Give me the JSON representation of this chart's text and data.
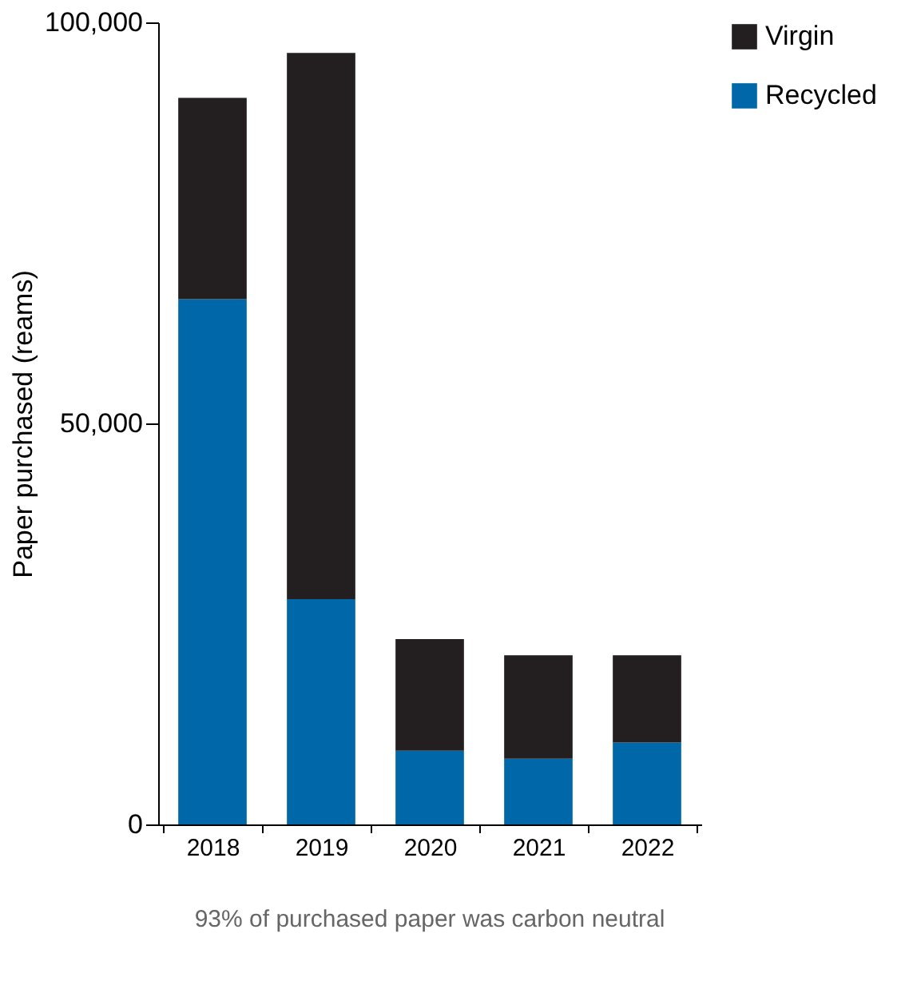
{
  "chart_data": {
    "type": "bar",
    "stacked": true,
    "ylabel": "Paper purchased (reams)",
    "categories": [
      "2018",
      "2019",
      "2020",
      "2021",
      "2022"
    ],
    "series": [
      {
        "name": "Recycled",
        "color": "#0068a8",
        "values": [
          65500,
          28100,
          9200,
          8200,
          10200
        ]
      },
      {
        "name": "Virgin",
        "color": "#231f20",
        "values": [
          25100,
          68100,
          13900,
          12900,
          10900
        ]
      }
    ],
    "ylim": [
      0,
      100000
    ],
    "yticks": [
      {
        "value": 0,
        "label": "0"
      },
      {
        "value": 50000,
        "label": "50,000"
      },
      {
        "value": 100000,
        "label": "100,000"
      }
    ],
    "grid": false,
    "legend": "right",
    "annotations": [
      "93% of purchased paper was carbon neutral"
    ]
  }
}
